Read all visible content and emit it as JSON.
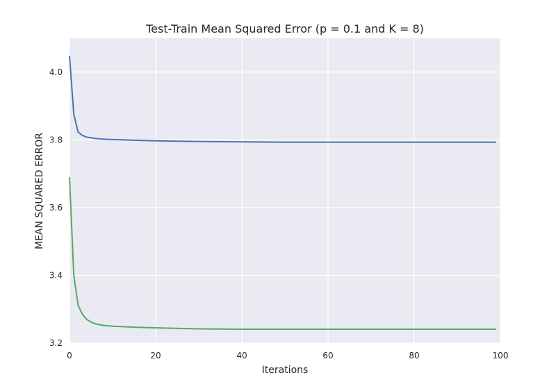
{
  "chart_data": {
    "type": "line",
    "title": "Test-Train Mean Squared Error (p = 0.1 and K = 8)",
    "xlabel": "Iterations",
    "ylabel": "MEAN SQUARED ERROR",
    "xlim": [
      0,
      100
    ],
    "ylim": [
      3.2,
      4.1
    ],
    "xticks": [
      0,
      20,
      40,
      60,
      80,
      100
    ],
    "yticks": [
      3.2,
      3.4,
      3.6,
      3.8,
      4.0
    ],
    "xtick_labels": [
      "0",
      "20",
      "40",
      "60",
      "80",
      "100"
    ],
    "ytick_labels": [
      "3.2",
      "3.4",
      "3.6",
      "3.8",
      "4.0"
    ],
    "grid": true,
    "background": "#eaeaf2",
    "series": [
      {
        "color": "#4c72b0",
        "x": [
          0,
          1,
          2,
          3,
          4,
          5,
          6,
          8,
          10,
          15,
          20,
          30,
          40,
          50,
          60,
          70,
          80,
          90,
          99
        ],
        "y": [
          4.048,
          3.875,
          3.823,
          3.813,
          3.808,
          3.806,
          3.804,
          3.802,
          3.801,
          3.799,
          3.797,
          3.795,
          3.794,
          3.793,
          3.793,
          3.793,
          3.793,
          3.793,
          3.793
        ]
      },
      {
        "color": "#55a868",
        "x": [
          0,
          1,
          2,
          3,
          4,
          5,
          6,
          7,
          8,
          10,
          15,
          20,
          30,
          40,
          50,
          60,
          70,
          80,
          90,
          99
        ],
        "y": [
          3.69,
          3.4,
          3.312,
          3.285,
          3.27,
          3.262,
          3.257,
          3.254,
          3.252,
          3.25,
          3.247,
          3.245,
          3.242,
          3.241,
          3.241,
          3.241,
          3.241,
          3.241,
          3.241,
          3.241
        ]
      }
    ]
  }
}
